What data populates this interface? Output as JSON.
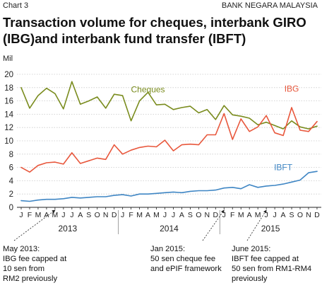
{
  "header": {
    "chart_label": "Chart 3",
    "source": "BANK NEGARA MALAYSIA",
    "unit": "Mil"
  },
  "colors": {
    "cheques": "#7a8c1e",
    "ibg": "#e8573c",
    "ibft": "#3f86c4",
    "axis": "#222222",
    "grid": "#c9c9c9"
  },
  "annotations": [
    {
      "text": "May 2013:\nIBG fee capped at\n10 sen from\nRM2 previously",
      "at_month_index": 4
    },
    {
      "text": "Jan 2015:\n50 sen cheque fee\nand ePIF framework",
      "at_month_index": 24
    },
    {
      "text": "June 2015:\nIBFT fee capped at\n50 sen from RM1-RM4\npreviously",
      "at_month_index": 29
    }
  ],
  "chart_data": {
    "type": "line",
    "title": "Transaction volume for cheques, interbank GIRO (IBG)and interbank fund transfer (IBFT)",
    "ylabel": "Mil",
    "ylim": [
      0,
      20
    ],
    "yticks": [
      0,
      2,
      4,
      6,
      8,
      10,
      12,
      14,
      16,
      18,
      20
    ],
    "grid": true,
    "legend": "inline labels",
    "x_month_labels": [
      "J",
      "F",
      "M",
      "A",
      "M",
      "J",
      "J",
      "A",
      "S",
      "O",
      "N",
      "D",
      "J",
      "F",
      "M",
      "A",
      "M",
      "J",
      "J",
      "A",
      "S",
      "O",
      "N",
      "D",
      "J",
      "F",
      "M",
      "A",
      "M",
      "J",
      "J",
      "A",
      "S",
      "O",
      "N",
      "D"
    ],
    "year_labels": [
      {
        "label": "2013",
        "center_index": 5.5
      },
      {
        "label": "2014",
        "center_index": 17.5
      },
      {
        "label": "2015",
        "center_index": 29.5
      }
    ],
    "series": [
      {
        "name": "Cheques",
        "color_key": "cheques",
        "values": [
          18.0,
          14.9,
          16.8,
          17.9,
          17.1,
          14.8,
          18.9,
          15.5,
          16.0,
          16.6,
          14.9,
          17.0,
          16.8,
          13.0,
          16.0,
          17.3,
          15.4,
          15.5,
          14.7,
          15.0,
          15.2,
          14.2,
          14.7,
          13.2,
          15.3,
          13.9,
          13.7,
          13.4,
          12.4,
          12.8,
          12.3,
          11.8,
          13.0,
          12.1,
          11.8,
          12.2
        ]
      },
      {
        "name": "IBG",
        "color_key": "ibg",
        "values": [
          6.0,
          5.3,
          6.3,
          6.7,
          6.8,
          6.5,
          8.2,
          6.6,
          7.0,
          7.4,
          7.2,
          9.4,
          8.0,
          8.6,
          9.0,
          9.2,
          9.1,
          10.1,
          8.5,
          9.4,
          9.5,
          9.4,
          10.9,
          10.9,
          14.1,
          10.2,
          13.3,
          11.4,
          12.1,
          13.8,
          11.2,
          10.8,
          15.0,
          11.6,
          11.4,
          12.9
        ]
      },
      {
        "name": "IBFT",
        "color_key": "ibft",
        "values": [
          1.0,
          0.9,
          1.1,
          1.2,
          1.2,
          1.3,
          1.5,
          1.4,
          1.5,
          1.6,
          1.6,
          1.8,
          1.9,
          1.7,
          2.0,
          2.0,
          2.1,
          2.2,
          2.3,
          2.2,
          2.4,
          2.5,
          2.5,
          2.6,
          2.9,
          3.0,
          2.8,
          3.4,
          3.0,
          3.2,
          3.3,
          3.5,
          3.8,
          4.1,
          5.2,
          5.4
        ]
      }
    ],
    "series_labels": [
      {
        "name": "Cheques",
        "at_index": 15,
        "value": 17.3
      },
      {
        "name": "IBG",
        "at_index": 32,
        "value": 17.4
      },
      {
        "name": "IBFT",
        "at_index": 31,
        "value": 5.6
      }
    ]
  }
}
